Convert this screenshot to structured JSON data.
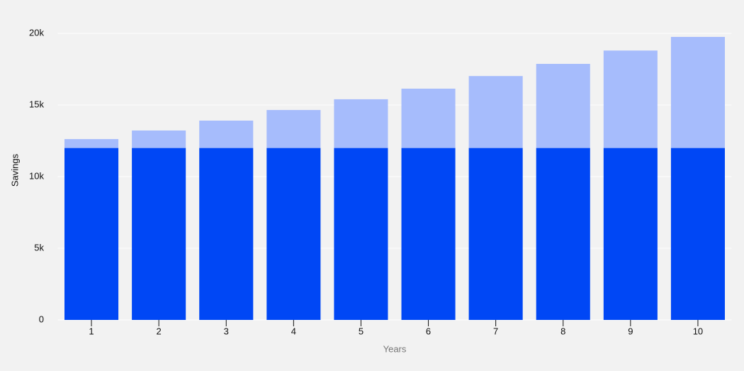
{
  "chart_data": {
    "type": "stacked_bar",
    "x_label": "Years",
    "y_label": "Savings",
    "categories": [
      "1",
      "2",
      "3",
      "4",
      "5",
      "6",
      "7",
      "8",
      "9",
      "10"
    ],
    "series": [
      {
        "color": "#0047f5",
        "values": [
          12000,
          12000,
          12000,
          12000,
          12000,
          12000,
          12000,
          12000,
          12000,
          12000
        ]
      },
      {
        "color": "#a6bcfc",
        "values": [
          620,
          1220,
          1910,
          2650,
          3400,
          4140,
          5020,
          5870,
          6800,
          7750
        ]
      }
    ],
    "ylim": [
      0,
      20000
    ],
    "yticks": [
      0,
      {
        "value": 5000,
        "label": "5k"
      },
      {
        "value": 10000,
        "label": "10k"
      },
      {
        "value": 15000,
        "label": "15k"
      },
      {
        "value": 20000,
        "label": "20k"
      }
    ],
    "grid": true
  }
}
